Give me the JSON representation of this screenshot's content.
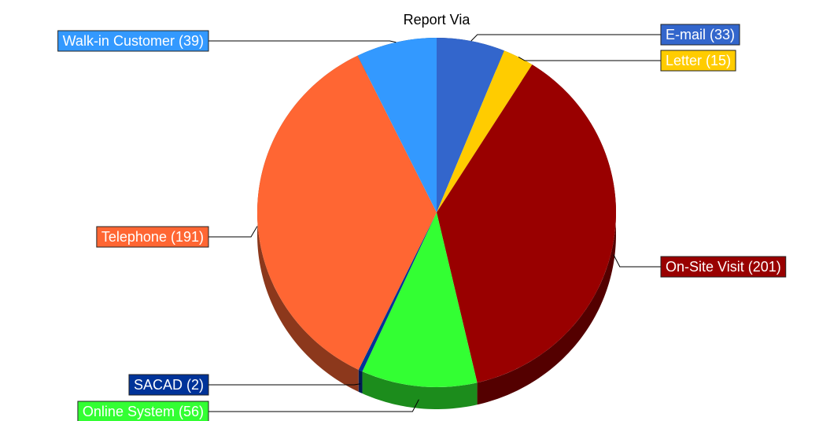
{
  "chart_data": {
    "type": "pie",
    "title": "Report Via",
    "categories": [
      "E-mail",
      "Letter",
      "On-Site Visit",
      "Online System",
      "SACAD",
      "Telephone",
      "Walk-in Customer"
    ],
    "values": [
      33,
      15,
      201,
      56,
      2,
      191,
      39
    ],
    "value_labels": [
      "(33)",
      "(15)",
      "(201)",
      "(56)",
      "(2)",
      "(191)",
      "(39)"
    ],
    "colors": [
      "#3366cc",
      "#ffcc00",
      "#990000",
      "#33ff33",
      "#003399",
      "#ff6633",
      "#3399ff"
    ]
  }
}
